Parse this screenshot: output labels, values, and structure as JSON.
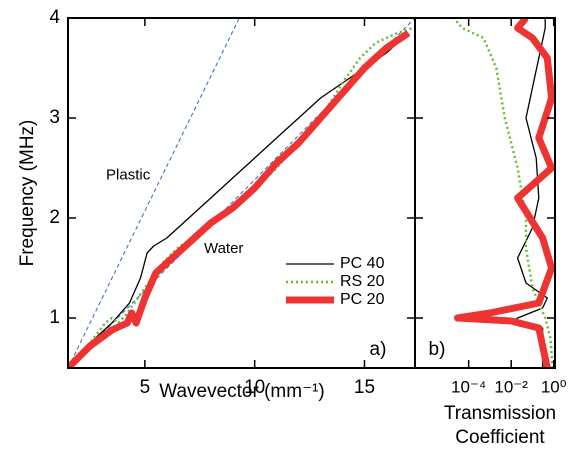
{
  "chart_data": [
    {
      "type": "line",
      "ylabel": "Frequency (MHz)",
      "xlabel": "Wavevector (mm⁻¹)",
      "panel_label": "a)",
      "xlim": [
        1.5,
        17.3
      ],
      "ylim": [
        0.5,
        4
      ],
      "xticks": [
        5,
        10,
        15
      ],
      "yticks": [
        1,
        2,
        3,
        4
      ],
      "legend": "lower right",
      "series": [
        {
          "name": "PC 40",
          "color": "#000000",
          "line_width": 1.3,
          "line_style": "solid",
          "x": [
            1.5,
            2.5,
            3.5,
            4.3,
            4.8,
            5.1,
            5.4,
            6,
            7,
            8,
            9,
            10,
            11,
            12,
            13,
            14,
            15,
            16,
            17
          ],
          "values": [
            0.5,
            0.75,
            0.95,
            1.15,
            1.4,
            1.65,
            1.72,
            1.8,
            2.0,
            2.2,
            2.4,
            2.6,
            2.8,
            3.0,
            3.2,
            3.35,
            3.5,
            3.65,
            3.85
          ]
        },
        {
          "name": "RS 20",
          "color": "#66bb33",
          "line_width": 2.5,
          "line_style": "dotted",
          "x": [
            1.5,
            2.5,
            3.2,
            3.5,
            3.8,
            4.2,
            5,
            5.8,
            6.5,
            7.5,
            9,
            10,
            11,
            12,
            13,
            14,
            14.8,
            15.5,
            16.5,
            17.2
          ],
          "values": [
            0.5,
            0.75,
            0.95,
            1.0,
            0.95,
            1.05,
            1.3,
            1.55,
            1.7,
            1.85,
            2.1,
            2.3,
            2.5,
            2.75,
            3.0,
            3.35,
            3.6,
            3.75,
            3.85,
            3.9
          ]
        },
        {
          "name": "PC 20",
          "color": "#ee3333",
          "line_width": 7,
          "line_style": "solid",
          "x": [
            1.5,
            2.5,
            3.5,
            4.2,
            4.4,
            4.6,
            5,
            5.5,
            6,
            7,
            8,
            9,
            10,
            11,
            12,
            13,
            14,
            15,
            16,
            17
          ],
          "values": [
            0.5,
            0.72,
            0.88,
            0.95,
            1.05,
            0.95,
            1.2,
            1.45,
            1.55,
            1.75,
            1.95,
            2.1,
            2.3,
            2.55,
            2.75,
            3.0,
            3.25,
            3.5,
            3.7,
            3.85
          ]
        }
      ],
      "reference_lines": [
        {
          "name": "Plastic",
          "color": "#3366bb",
          "x": [
            1.5,
            9.3
          ],
          "values": [
            0.5,
            4
          ]
        },
        {
          "name": "Water",
          "color": "#3366bb",
          "x": [
            1.5,
            17.3
          ],
          "values": [
            0.5,
            4
          ]
        }
      ]
    },
    {
      "type": "line",
      "xlabel": [
        "Transmission",
        "Coefficient"
      ],
      "panel_label": "b)",
      "xscale": "log",
      "xlim": [
        3e-07,
        1.15
      ],
      "ylim": [
        0.5,
        4
      ],
      "xticks": [
        {
          "value": 0.0001,
          "label": "10⁻⁴"
        },
        {
          "value": 0.01,
          "label": "10⁻²"
        },
        {
          "value": 1,
          "label": "10⁰"
        }
      ],
      "series": [
        {
          "color": "#000000",
          "line_width": 1.3,
          "line_style": "solid",
          "x": [
            0.3,
            0.3,
            0.01,
            0.02,
            0.3,
            0.5,
            0.05,
            0.02,
            0.1,
            0.2,
            0.15,
            0.05,
            0.1,
            0.2,
            0.4,
            0.4
          ],
          "values": [
            0.5,
            0.9,
            0.95,
            1.0,
            1.1,
            1.2,
            1.35,
            1.6,
            1.9,
            2.2,
            2.6,
            3.0,
            3.3,
            3.6,
            3.9,
            4.0
          ]
        },
        {
          "color": "#66bb33",
          "line_width": 2.5,
          "line_style": "dotted",
          "x": [
            0.9,
            0.7,
            0.4,
            0.1,
            0.05,
            0.05,
            0.02,
            0.005,
            0.002,
            0.0005,
            5e-05,
            2e-05
          ],
          "values": [
            0.5,
            0.8,
            1.0,
            1.3,
            1.7,
            2.0,
            2.5,
            3.0,
            3.5,
            3.8,
            3.9,
            4.0
          ]
        },
        {
          "color": "#ee3333",
          "line_width": 7,
          "line_style": "solid",
          "x": [
            0.5,
            0.2,
            0.01,
            3e-05,
            0.001,
            0.2,
            0.8,
            0.3,
            0.02,
            0.8,
            0.2,
            0.8,
            0.5,
            0.1,
            0.02,
            0.05
          ],
          "values": [
            0.5,
            0.9,
            0.97,
            1.0,
            1.05,
            1.15,
            1.5,
            1.8,
            2.2,
            2.5,
            2.8,
            3.2,
            3.6,
            3.8,
            3.9,
            4.0
          ]
        }
      ]
    }
  ]
}
